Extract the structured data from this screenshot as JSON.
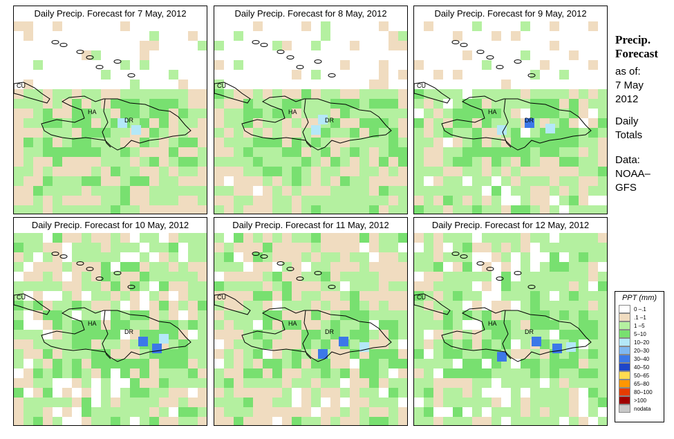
{
  "panels": [
    {
      "title": "Daily Precip. Forecast for  7 May, 2012"
    },
    {
      "title": "Daily Precip. Forecast for  8 May, 2012"
    },
    {
      "title": "Daily Precip. Forecast for  9 May, 2012"
    },
    {
      "title": "Daily Precip. Forecast for  10 May, 2012"
    },
    {
      "title": "Daily Precip. Forecast for  11 May, 2012"
    },
    {
      "title": "Daily Precip. Forecast for  12 May, 2012"
    }
  ],
  "map_labels": {
    "cuba": "CU",
    "haiti": "HA",
    "dominican_republic": "DR"
  },
  "side": {
    "heading_1": "Precip.",
    "heading_2": "Forecast",
    "as_of": "as of:",
    "date_1": "7 May",
    "date_2": "2012",
    "totals_1": "Daily",
    "totals_2": "Totals",
    "data_1": "Data:",
    "data_2": "NOAA–",
    "data_3": "GFS"
  },
  "legend": {
    "title": "PPT (mm)",
    "items": [
      {
        "label": "0 –.1",
        "color": "#ffffff"
      },
      {
        "label": ".1 –1",
        "color": "#f0dcc0"
      },
      {
        "label": "1 –5",
        "color": "#b4f0a0"
      },
      {
        "label": "5–10",
        "color": "#78e070"
      },
      {
        "label": "10–20",
        "color": "#b4e8f8"
      },
      {
        "label": "20–30",
        "color": "#80b8f0"
      },
      {
        "label": "30–40",
        "color": "#3c78e8"
      },
      {
        "label": "40–50",
        "color": "#1e46c8"
      },
      {
        "label": "50–65",
        "color": "#ffdc50"
      },
      {
        "label": "65–80",
        "color": "#ff9600"
      },
      {
        "label": "80–100",
        "color": "#e63c00"
      },
      {
        "label": ">100",
        "color": "#a00000"
      },
      {
        "label": "nodata",
        "color": "#c8c8c8"
      }
    ]
  }
}
